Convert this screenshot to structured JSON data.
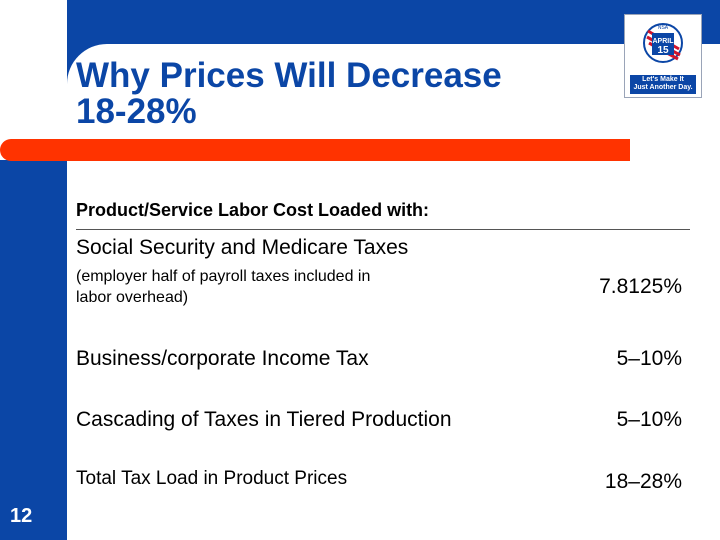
{
  "slide": {
    "title_line1": "Why Prices Will Decrease",
    "title_line2": "18-28%",
    "subheading": "Product/Service Labor Cost Loaded with:",
    "page_number": "12"
  },
  "logo": {
    "badge_text": "APRIL 15",
    "badge_top": "NSA",
    "tagline_line1": "Let's Make It",
    "tagline_line2": "Just Another Day."
  },
  "rows": [
    {
      "label": "Social Security and Medicare Taxes",
      "note_line1": "(employer half of payroll taxes included in",
      "note_line2": "labor overhead)",
      "value": "7.8125%"
    },
    {
      "label": "Business/corporate Income Tax",
      "value": "5–10%"
    },
    {
      "label": "Cascading of Taxes in Tiered Production",
      "value": "5–10%"
    },
    {
      "label": "Total Tax Load in Product Prices",
      "value": "18–28%"
    }
  ],
  "colors": {
    "brand_blue": "#0b46a6",
    "accent_orange": "#ff3300"
  }
}
